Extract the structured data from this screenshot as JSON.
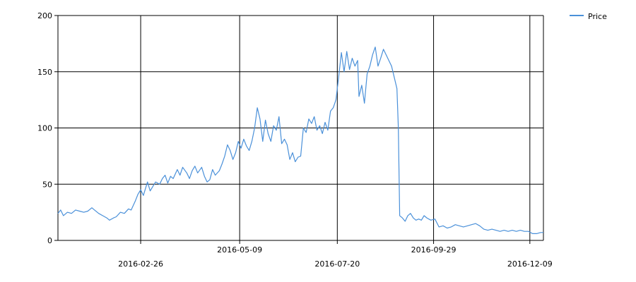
{
  "chart_data": {
    "type": "line",
    "title": "",
    "xlabel": "",
    "ylabel": "",
    "x_tick_labels": [
      "2016-02-26",
      "2016-05-09",
      "2016-07-20",
      "2016-09-29",
      "2016-12-09"
    ],
    "x_range": [
      "2015-12-27",
      "2016-12-19"
    ],
    "y_ticks": [
      0,
      50,
      100,
      150,
      200
    ],
    "ylim": [
      0,
      200
    ],
    "grid": true,
    "legend_position": "top-right",
    "series": [
      {
        "name": "Price",
        "color": "#4a90d9",
        "points": [
          [
            "2015-12-27",
            24
          ],
          [
            "2015-12-29",
            27
          ],
          [
            "2015-12-31",
            22
          ],
          [
            "2016-01-03",
            25
          ],
          [
            "2016-01-06",
            24
          ],
          [
            "2016-01-09",
            27
          ],
          [
            "2016-01-12",
            26
          ],
          [
            "2016-01-15",
            25
          ],
          [
            "2016-01-18",
            26
          ],
          [
            "2016-01-21",
            29
          ],
          [
            "2016-01-23",
            27
          ],
          [
            "2016-01-26",
            24
          ],
          [
            "2016-01-29",
            22
          ],
          [
            "2016-02-01",
            20
          ],
          [
            "2016-02-03",
            18
          ],
          [
            "2016-02-06",
            20
          ],
          [
            "2016-02-08",
            21
          ],
          [
            "2016-02-11",
            25
          ],
          [
            "2016-02-14",
            24
          ],
          [
            "2016-02-17",
            28
          ],
          [
            "2016-02-19",
            27
          ],
          [
            "2016-02-22",
            35
          ],
          [
            "2016-02-24",
            41
          ],
          [
            "2016-02-26",
            45
          ],
          [
            "2016-02-28",
            40
          ],
          [
            "2016-03-02",
            52
          ],
          [
            "2016-03-04",
            44
          ],
          [
            "2016-03-06",
            48
          ],
          [
            "2016-03-08",
            52
          ],
          [
            "2016-03-11",
            50
          ],
          [
            "2016-03-13",
            55
          ],
          [
            "2016-03-15",
            58
          ],
          [
            "2016-03-17",
            51
          ],
          [
            "2016-03-19",
            57
          ],
          [
            "2016-03-21",
            55
          ],
          [
            "2016-03-24",
            63
          ],
          [
            "2016-03-26",
            58
          ],
          [
            "2016-03-28",
            65
          ],
          [
            "2016-03-31",
            60
          ],
          [
            "2016-04-02",
            55
          ],
          [
            "2016-04-04",
            62
          ],
          [
            "2016-04-06",
            66
          ],
          [
            "2016-04-08",
            60
          ],
          [
            "2016-04-11",
            65
          ],
          [
            "2016-04-13",
            57
          ],
          [
            "2016-04-15",
            52
          ],
          [
            "2016-04-17",
            54
          ],
          [
            "2016-04-19",
            63
          ],
          [
            "2016-04-21",
            58
          ],
          [
            "2016-04-24",
            62
          ],
          [
            "2016-04-26",
            68
          ],
          [
            "2016-04-28",
            75
          ],
          [
            "2016-04-30",
            85
          ],
          [
            "2016-05-02",
            80
          ],
          [
            "2016-05-04",
            72
          ],
          [
            "2016-05-06",
            78
          ],
          [
            "2016-05-08",
            88
          ],
          [
            "2016-05-10",
            82
          ],
          [
            "2016-05-12",
            90
          ],
          [
            "2016-05-14",
            84
          ],
          [
            "2016-05-16",
            80
          ],
          [
            "2016-05-18",
            88
          ],
          [
            "2016-05-20",
            100
          ],
          [
            "2016-05-22",
            118
          ],
          [
            "2016-05-24",
            108
          ],
          [
            "2016-05-26",
            88
          ],
          [
            "2016-05-28",
            107
          ],
          [
            "2016-05-30",
            95
          ],
          [
            "2016-06-01",
            88
          ],
          [
            "2016-06-03",
            102
          ],
          [
            "2016-06-05",
            98
          ],
          [
            "2016-06-07",
            110
          ],
          [
            "2016-06-09",
            86
          ],
          [
            "2016-06-11",
            90
          ],
          [
            "2016-06-13",
            85
          ],
          [
            "2016-06-15",
            72
          ],
          [
            "2016-06-17",
            78
          ],
          [
            "2016-06-19",
            70
          ],
          [
            "2016-06-21",
            74
          ],
          [
            "2016-06-23",
            75
          ],
          [
            "2016-06-25",
            100
          ],
          [
            "2016-06-27",
            96
          ],
          [
            "2016-06-29",
            108
          ],
          [
            "2016-07-01",
            104
          ],
          [
            "2016-07-03",
            110
          ],
          [
            "2016-07-05",
            98
          ],
          [
            "2016-07-07",
            102
          ],
          [
            "2016-07-09",
            95
          ],
          [
            "2016-07-11",
            105
          ],
          [
            "2016-07-13",
            98
          ],
          [
            "2016-07-15",
            115
          ],
          [
            "2016-07-17",
            118
          ],
          [
            "2016-07-19",
            125
          ],
          [
            "2016-07-21",
            145
          ],
          [
            "2016-07-23",
            167
          ],
          [
            "2016-07-25",
            150
          ],
          [
            "2016-07-27",
            168
          ],
          [
            "2016-07-29",
            152
          ],
          [
            "2016-07-31",
            162
          ],
          [
            "2016-08-02",
            155
          ],
          [
            "2016-08-04",
            160
          ],
          [
            "2016-08-05",
            128
          ],
          [
            "2016-08-07",
            138
          ],
          [
            "2016-08-09",
            122
          ],
          [
            "2016-08-11",
            148
          ],
          [
            "2016-08-13",
            155
          ],
          [
            "2016-08-15",
            165
          ],
          [
            "2016-08-17",
            172
          ],
          [
            "2016-08-19",
            155
          ],
          [
            "2016-08-21",
            162
          ],
          [
            "2016-08-23",
            170
          ],
          [
            "2016-08-25",
            165
          ],
          [
            "2016-08-27",
            160
          ],
          [
            "2016-08-29",
            155
          ],
          [
            "2016-08-31",
            145
          ],
          [
            "2016-09-02",
            135
          ],
          [
            "2016-09-03",
            100
          ],
          [
            "2016-09-04",
            22
          ],
          [
            "2016-09-06",
            20
          ],
          [
            "2016-09-08",
            17
          ],
          [
            "2016-09-10",
            22
          ],
          [
            "2016-09-12",
            24
          ],
          [
            "2016-09-14",
            20
          ],
          [
            "2016-09-16",
            18
          ],
          [
            "2016-09-18",
            19
          ],
          [
            "2016-09-20",
            18
          ],
          [
            "2016-09-22",
            22
          ],
          [
            "2016-09-24",
            20
          ],
          [
            "2016-09-27",
            18
          ],
          [
            "2016-09-30",
            19
          ],
          [
            "2016-10-03",
            12
          ],
          [
            "2016-10-06",
            13
          ],
          [
            "2016-10-09",
            11
          ],
          [
            "2016-10-12",
            12
          ],
          [
            "2016-10-15",
            14
          ],
          [
            "2016-10-18",
            13
          ],
          [
            "2016-10-21",
            12
          ],
          [
            "2016-10-24",
            13
          ],
          [
            "2016-10-27",
            14
          ],
          [
            "2016-10-30",
            15
          ],
          [
            "2016-11-02",
            13
          ],
          [
            "2016-11-05",
            10
          ],
          [
            "2016-11-08",
            9
          ],
          [
            "2016-11-11",
            10
          ],
          [
            "2016-11-14",
            9
          ],
          [
            "2016-11-17",
            8
          ],
          [
            "2016-11-20",
            9
          ],
          [
            "2016-11-23",
            8
          ],
          [
            "2016-11-26",
            9
          ],
          [
            "2016-11-29",
            8
          ],
          [
            "2016-12-02",
            9
          ],
          [
            "2016-12-05",
            8
          ],
          [
            "2016-12-08",
            8
          ],
          [
            "2016-12-11",
            6
          ],
          [
            "2016-12-14",
            6
          ],
          [
            "2016-12-17",
            7
          ],
          [
            "2016-12-19",
            7
          ]
        ]
      }
    ]
  }
}
